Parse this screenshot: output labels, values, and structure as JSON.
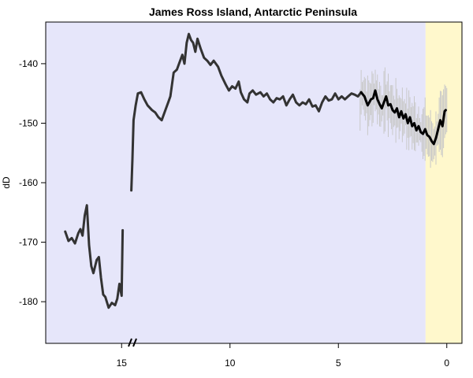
{
  "chart_data": {
    "type": "line",
    "title": "James Ross Island, Antarctic Peninsula",
    "xlabel": "",
    "ylabel": "dD",
    "x_axis_reversed": true,
    "xlim": [
      18.5,
      -0.7
    ],
    "ylim": [
      -187,
      -133
    ],
    "x_ticks": [
      15,
      10,
      5,
      0
    ],
    "y_ticks": [
      -140,
      -150,
      -160,
      -170,
      -180
    ],
    "grid": false,
    "legend": "none",
    "x_axis_break_at": 14.5,
    "shaded_regions": [
      {
        "x_from": 18.5,
        "x_to": 0.98,
        "color": "#e6e6fa"
      },
      {
        "x_from": 0.98,
        "x_to": -0.7,
        "color": "#fff8cc"
      }
    ],
    "series": [
      {
        "line_color": "#333333",
        "points": [
          [
            17.6,
            -168.2
          ],
          [
            17.45,
            -169.8
          ],
          [
            17.3,
            -169.3
          ],
          [
            17.15,
            -170.2
          ],
          [
            17.0,
            -168.5
          ],
          [
            16.9,
            -167.8
          ],
          [
            16.8,
            -168.9
          ],
          [
            16.7,
            -165.5
          ],
          [
            16.6,
            -163.8
          ],
          [
            16.5,
            -170.5
          ],
          [
            16.4,
            -174.0
          ],
          [
            16.3,
            -175.2
          ],
          [
            16.15,
            -173.0
          ],
          [
            16.05,
            -172.5
          ],
          [
            15.95,
            -176.0
          ],
          [
            15.85,
            -178.8
          ],
          [
            15.75,
            -179.2
          ],
          [
            15.6,
            -181.0
          ],
          [
            15.45,
            -180.2
          ],
          [
            15.3,
            -180.6
          ],
          [
            15.2,
            -179.5
          ],
          [
            15.1,
            -177.0
          ],
          [
            15.0,
            -179.0
          ],
          [
            14.95,
            -168.0
          ]
        ]
      },
      {
        "line_color": "#333333",
        "points": [
          [
            14.55,
            -161.3
          ],
          [
            14.5,
            -156.0
          ],
          [
            14.45,
            -149.5
          ],
          [
            14.35,
            -147.0
          ],
          [
            14.25,
            -145.0
          ],
          [
            14.1,
            -144.8
          ],
          [
            13.95,
            -146.0
          ],
          [
            13.8,
            -147.0
          ],
          [
            13.6,
            -147.8
          ],
          [
            13.45,
            -148.2
          ],
          [
            13.3,
            -149.0
          ],
          [
            13.15,
            -149.5
          ],
          [
            12.95,
            -147.5
          ],
          [
            12.85,
            -146.5
          ],
          [
            12.75,
            -145.5
          ],
          [
            12.6,
            -141.5
          ],
          [
            12.45,
            -141.0
          ],
          [
            12.3,
            -139.5
          ],
          [
            12.2,
            -138.5
          ],
          [
            12.1,
            -140.0
          ],
          [
            12.0,
            -136.5
          ],
          [
            11.9,
            -135.0
          ],
          [
            11.8,
            -136.0
          ],
          [
            11.7,
            -136.5
          ],
          [
            11.6,
            -138.0
          ],
          [
            11.5,
            -135.8
          ],
          [
            11.35,
            -137.5
          ],
          [
            11.2,
            -139.0
          ],
          [
            11.05,
            -139.5
          ],
          [
            10.9,
            -140.2
          ],
          [
            10.75,
            -139.5
          ],
          [
            10.55,
            -140.5
          ],
          [
            10.4,
            -142.0
          ],
          [
            10.2,
            -143.5
          ],
          [
            10.05,
            -144.5
          ],
          [
            9.9,
            -143.8
          ],
          [
            9.75,
            -144.2
          ],
          [
            9.6,
            -143.0
          ],
          [
            9.5,
            -144.8
          ],
          [
            9.35,
            -146.0
          ],
          [
            9.2,
            -146.5
          ],
          [
            9.1,
            -145.0
          ],
          [
            8.95,
            -144.5
          ],
          [
            8.8,
            -145.2
          ],
          [
            8.6,
            -144.8
          ],
          [
            8.45,
            -145.5
          ],
          [
            8.3,
            -145.0
          ],
          [
            8.15,
            -146.0
          ],
          [
            8.0,
            -146.5
          ],
          [
            7.85,
            -145.8
          ],
          [
            7.7,
            -146.0
          ],
          [
            7.55,
            -145.5
          ],
          [
            7.4,
            -147.0
          ],
          [
            7.25,
            -146.0
          ],
          [
            7.1,
            -145.2
          ],
          [
            6.95,
            -146.5
          ],
          [
            6.8,
            -147.0
          ],
          [
            6.65,
            -146.5
          ],
          [
            6.5,
            -146.8
          ],
          [
            6.35,
            -146.0
          ],
          [
            6.2,
            -147.2
          ],
          [
            6.05,
            -147.0
          ],
          [
            5.9,
            -148.0
          ],
          [
            5.75,
            -146.5
          ],
          [
            5.6,
            -145.5
          ],
          [
            5.45,
            -146.2
          ],
          [
            5.3,
            -146.0
          ],
          [
            5.15,
            -145.0
          ],
          [
            5.0,
            -146.0
          ],
          [
            4.85,
            -145.5
          ],
          [
            4.7,
            -146.0
          ],
          [
            4.55,
            -145.5
          ],
          [
            4.4,
            -145.0
          ],
          [
            4.25,
            -145.2
          ],
          [
            4.1,
            -145.5
          ],
          [
            3.95,
            -144.8
          ]
        ]
      },
      {
        "line_color": "#000000",
        "points": [
          [
            3.95,
            -144.8
          ],
          [
            3.8,
            -145.5
          ],
          [
            3.65,
            -147.0
          ],
          [
            3.5,
            -146.0
          ],
          [
            3.4,
            -145.8
          ],
          [
            3.3,
            -144.5
          ],
          [
            3.2,
            -146.0
          ],
          [
            3.1,
            -146.8
          ],
          [
            3.0,
            -147.5
          ],
          [
            2.9,
            -146.5
          ],
          [
            2.8,
            -145.5
          ],
          [
            2.7,
            -147.0
          ],
          [
            2.6,
            -146.8
          ],
          [
            2.5,
            -147.8
          ],
          [
            2.4,
            -148.2
          ],
          [
            2.3,
            -147.5
          ],
          [
            2.2,
            -149.0
          ],
          [
            2.1,
            -148.0
          ],
          [
            2.0,
            -149.2
          ],
          [
            1.9,
            -148.5
          ],
          [
            1.8,
            -150.0
          ],
          [
            1.7,
            -149.0
          ],
          [
            1.6,
            -150.5
          ],
          [
            1.5,
            -150.0
          ],
          [
            1.4,
            -151.2
          ],
          [
            1.3,
            -150.5
          ],
          [
            1.2,
            -151.5
          ],
          [
            1.1,
            -151.8
          ],
          [
            1.0,
            -151.0
          ],
          [
            0.9,
            -152.0
          ],
          [
            0.8,
            -152.3
          ],
          [
            0.7,
            -153.0
          ],
          [
            0.6,
            -153.5
          ],
          [
            0.5,
            -152.5
          ],
          [
            0.4,
            -151.0
          ],
          [
            0.3,
            -149.5
          ],
          [
            0.2,
            -150.5
          ],
          [
            0.1,
            -148.0
          ],
          [
            0.05,
            -147.8
          ]
        ]
      }
    ],
    "uncertainty_band": {
      "color": "#c8c8c8",
      "x_from": 4.0,
      "x_to": 0.0,
      "step": 0.05,
      "spread_min": 1.5,
      "spread_max": 5.5,
      "envelope_low": -159.5,
      "envelope_high": -139.0
    }
  }
}
